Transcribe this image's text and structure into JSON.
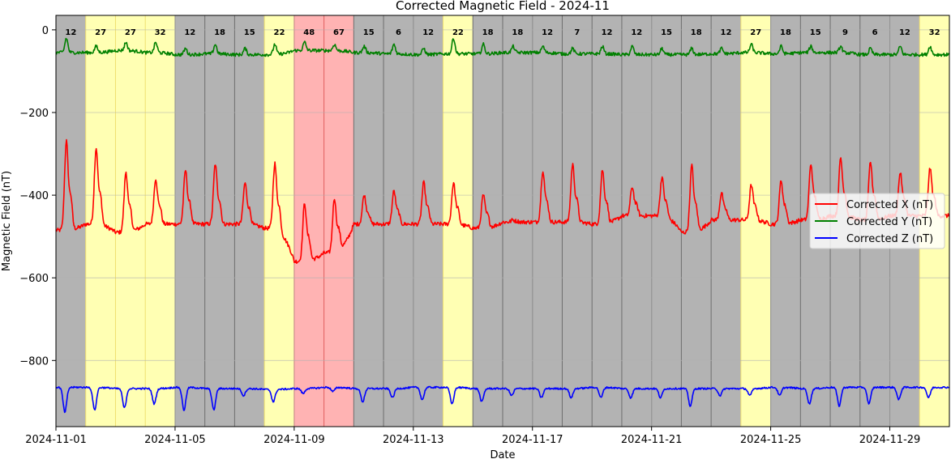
{
  "chart_data": {
    "type": "line",
    "title": "Corrected Magnetic Field - 2024-11",
    "xlabel": "Date",
    "ylabel": "Magnetic Field (nT)",
    "xlim": [
      "2024-11-01",
      "2024-12-01"
    ],
    "ylim": [
      -960,
      35
    ],
    "grid": true,
    "legend_position": "right",
    "xticks": [
      "2024-11-01",
      "2024-11-05",
      "2024-11-09",
      "2024-11-13",
      "2024-11-17",
      "2024-11-21",
      "2024-11-25",
      "2024-11-29"
    ],
    "yticks": [
      0,
      -200,
      -400,
      -600,
      -800
    ],
    "daily_bands": [
      {
        "date": "2024-11-01",
        "value": 12,
        "color": "#b3b3b3"
      },
      {
        "date": "2024-11-02",
        "value": 27,
        "color": "#ffffb3"
      },
      {
        "date": "2024-11-03",
        "value": 27,
        "color": "#ffffb3"
      },
      {
        "date": "2024-11-04",
        "value": 32,
        "color": "#ffffb3"
      },
      {
        "date": "2024-11-05",
        "value": 12,
        "color": "#b3b3b3"
      },
      {
        "date": "2024-11-06",
        "value": 18,
        "color": "#b3b3b3"
      },
      {
        "date": "2024-11-07",
        "value": 15,
        "color": "#b3b3b3"
      },
      {
        "date": "2024-11-08",
        "value": 22,
        "color": "#ffffb3"
      },
      {
        "date": "2024-11-09",
        "value": 48,
        "color": "#ffb3b3"
      },
      {
        "date": "2024-11-10",
        "value": 67,
        "color": "#ffb3b3"
      },
      {
        "date": "2024-11-11",
        "value": 15,
        "color": "#b3b3b3"
      },
      {
        "date": "2024-11-12",
        "value": 6,
        "color": "#b3b3b3"
      },
      {
        "date": "2024-11-13",
        "value": 12,
        "color": "#b3b3b3"
      },
      {
        "date": "2024-11-14",
        "value": 22,
        "color": "#ffffb3"
      },
      {
        "date": "2024-11-15",
        "value": 18,
        "color": "#b3b3b3"
      },
      {
        "date": "2024-11-16",
        "value": 18,
        "color": "#b3b3b3"
      },
      {
        "date": "2024-11-17",
        "value": 12,
        "color": "#b3b3b3"
      },
      {
        "date": "2024-11-18",
        "value": 7,
        "color": "#b3b3b3"
      },
      {
        "date": "2024-11-19",
        "value": 12,
        "color": "#b3b3b3"
      },
      {
        "date": "2024-11-20",
        "value": 12,
        "color": "#b3b3b3"
      },
      {
        "date": "2024-11-21",
        "value": 15,
        "color": "#b3b3b3"
      },
      {
        "date": "2024-11-22",
        "value": 18,
        "color": "#b3b3b3"
      },
      {
        "date": "2024-11-23",
        "value": 12,
        "color": "#b3b3b3"
      },
      {
        "date": "2024-11-24",
        "value": 27,
        "color": "#ffffb3"
      },
      {
        "date": "2024-11-25",
        "value": 18,
        "color": "#b3b3b3"
      },
      {
        "date": "2024-11-26",
        "value": 15,
        "color": "#b3b3b3"
      },
      {
        "date": "2024-11-27",
        "value": 9,
        "color": "#b3b3b3"
      },
      {
        "date": "2024-11-28",
        "value": 6,
        "color": "#b3b3b3"
      },
      {
        "date": "2024-11-29",
        "value": 12,
        "color": "#b3b3b3"
      },
      {
        "date": "2024-11-30",
        "value": 32,
        "color": "#ffffb3"
      }
    ],
    "series": [
      {
        "name": "Corrected X (nT)",
        "color": "#ff0000",
        "baseline": [
          -485,
          -470,
          -490,
          -470,
          -470,
          -470,
          -470,
          -480,
          -560,
          -540,
          -470,
          -470,
          -470,
          -470,
          -480,
          -465,
          -465,
          -465,
          -470,
          -450,
          -450,
          -490,
          -460,
          -460,
          -470,
          -460,
          -450,
          -460,
          -450,
          -450
        ],
        "daily_peak": [
          -270,
          -285,
          -345,
          -360,
          -340,
          -325,
          -370,
          -320,
          -420,
          -410,
          -400,
          -390,
          -370,
          -370,
          -400,
          -460,
          -340,
          -325,
          -340,
          -380,
          -355,
          -330,
          -395,
          -375,
          -365,
          -325,
          -310,
          -320,
          -345,
          -335
        ],
        "x": [
          "2024-11-01",
          "2024-11-02",
          "2024-11-03",
          "2024-11-04",
          "2024-11-05",
          "2024-11-06",
          "2024-11-07",
          "2024-11-08",
          "2024-11-09",
          "2024-11-10",
          "2024-11-11",
          "2024-11-12",
          "2024-11-13",
          "2024-11-14",
          "2024-11-15",
          "2024-11-16",
          "2024-11-17",
          "2024-11-18",
          "2024-11-19",
          "2024-11-20",
          "2024-11-21",
          "2024-11-22",
          "2024-11-23",
          "2024-11-24",
          "2024-11-25",
          "2024-11-26",
          "2024-11-27",
          "2024-11-28",
          "2024-11-29",
          "2024-11-30"
        ]
      },
      {
        "name": "Corrected Y (nT)",
        "color": "#008000",
        "baseline": [
          -55,
          -55,
          -50,
          -55,
          -60,
          -58,
          -60,
          -60,
          -50,
          -50,
          -55,
          -58,
          -60,
          -58,
          -58,
          -55,
          -55,
          -58,
          -58,
          -60,
          -60,
          -60,
          -58,
          -55,
          -58,
          -55,
          -55,
          -60,
          -60,
          -60
        ],
        "daily_peak": [
          -20,
          -40,
          -30,
          -30,
          -45,
          -35,
          -45,
          -35,
          -30,
          -35,
          -40,
          -35,
          -45,
          -20,
          -35,
          -40,
          -40,
          -45,
          -40,
          -40,
          -45,
          -45,
          -45,
          -35,
          -40,
          -40,
          -40,
          -45,
          -40,
          -40
        ],
        "x": [
          "2024-11-01",
          "2024-11-02",
          "2024-11-03",
          "2024-11-04",
          "2024-11-05",
          "2024-11-06",
          "2024-11-07",
          "2024-11-08",
          "2024-11-09",
          "2024-11-10",
          "2024-11-11",
          "2024-11-12",
          "2024-11-13",
          "2024-11-14",
          "2024-11-15",
          "2024-11-16",
          "2024-11-17",
          "2024-11-18",
          "2024-11-19",
          "2024-11-20",
          "2024-11-21",
          "2024-11-22",
          "2024-11-23",
          "2024-11-24",
          "2024-11-25",
          "2024-11-26",
          "2024-11-27",
          "2024-11-28",
          "2024-11-29",
          "2024-11-30"
        ]
      },
      {
        "name": "Corrected Z (nT)",
        "color": "#0000ff",
        "baseline": [
          -865,
          -865,
          -868,
          -868,
          -865,
          -868,
          -868,
          -870,
          -868,
          -865,
          -868,
          -868,
          -865,
          -865,
          -868,
          -868,
          -868,
          -868,
          -865,
          -868,
          -868,
          -868,
          -868,
          -868,
          -865,
          -868,
          -865,
          -865,
          -865,
          -865
        ],
        "daily_trough": [
          -925,
          -920,
          -915,
          -905,
          -920,
          -920,
          -885,
          -900,
          -880,
          -875,
          -900,
          -890,
          -895,
          -905,
          -900,
          -885,
          -890,
          -890,
          -890,
          -890,
          -890,
          -910,
          -885,
          -885,
          -885,
          -905,
          -910,
          -905,
          -895,
          -890
        ],
        "x": [
          "2024-11-01",
          "2024-11-02",
          "2024-11-03",
          "2024-11-04",
          "2024-11-05",
          "2024-11-06",
          "2024-11-07",
          "2024-11-08",
          "2024-11-09",
          "2024-11-10",
          "2024-11-11",
          "2024-11-12",
          "2024-11-13",
          "2024-11-14",
          "2024-11-15",
          "2024-11-16",
          "2024-11-17",
          "2024-11-18",
          "2024-11-19",
          "2024-11-20",
          "2024-11-21",
          "2024-11-22",
          "2024-11-23",
          "2024-11-24",
          "2024-11-25",
          "2024-11-26",
          "2024-11-27",
          "2024-11-28",
          "2024-11-29",
          "2024-11-30"
        ]
      }
    ]
  }
}
